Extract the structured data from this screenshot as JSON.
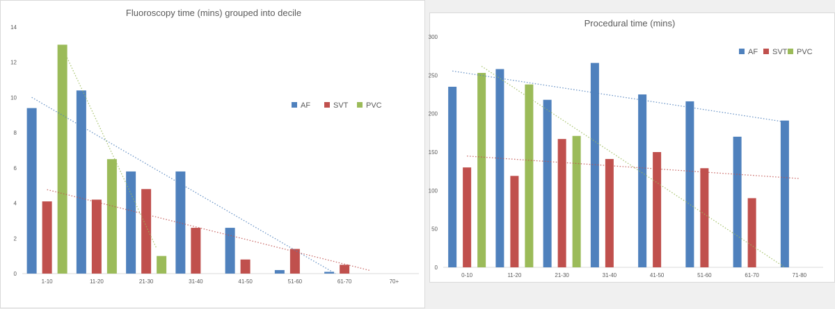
{
  "colors": {
    "AF": "#4f81bd",
    "SVT": "#c0504d",
    "PVC": "#9bbb59",
    "grid": "#d9d9d9",
    "text": "#595959"
  },
  "chart_data": [
    {
      "type": "bar",
      "title": "Fluoroscopy time (mins) grouped into decile",
      "xlabel": "",
      "ylabel": "",
      "ylim": [
        0,
        14
      ],
      "yticks": [
        0,
        2,
        4,
        6,
        8,
        10,
        12,
        14
      ],
      "categories": [
        "1-10",
        "11-20",
        "21-30",
        "31-40",
        "41-50",
        "51-60",
        "61-70",
        "70+"
      ],
      "series": [
        {
          "name": "AF",
          "values": [
            9.4,
            10.4,
            5.8,
            5.8,
            2.6,
            0.2,
            0.1,
            0
          ]
        },
        {
          "name": "SVT",
          "values": [
            4.1,
            4.2,
            4.8,
            2.6,
            0.8,
            1.4,
            0.5,
            0
          ]
        },
        {
          "name": "PVC",
          "values": [
            13.0,
            6.5,
            1.0,
            0,
            0,
            0,
            0,
            0
          ]
        }
      ],
      "trendlines": "linear, dotted, per series",
      "grid": "none",
      "legend": "right"
    },
    {
      "type": "bar",
      "title": "Procedural time (mins)",
      "xlabel": "",
      "ylabel": "",
      "ylim": [
        0,
        300
      ],
      "yticks": [
        0,
        50,
        100,
        150,
        200,
        250,
        300
      ],
      "categories": [
        "0-10",
        "11-20",
        "21-30",
        "31-40",
        "41-50",
        "51-60",
        "61-70",
        "71-80"
      ],
      "series": [
        {
          "name": "AF",
          "values": [
            235,
            258,
            218,
            266,
            225,
            216,
            170,
            191
          ]
        },
        {
          "name": "SVT",
          "values": [
            130,
            119,
            167,
            141,
            150,
            129,
            90,
            0
          ]
        },
        {
          "name": "PVC",
          "values": [
            253,
            238,
            171,
            0,
            0,
            0,
            0,
            0
          ]
        }
      ],
      "trendlines": "linear, dotted, per series",
      "grid": "none",
      "legend": "top-right"
    }
  ]
}
